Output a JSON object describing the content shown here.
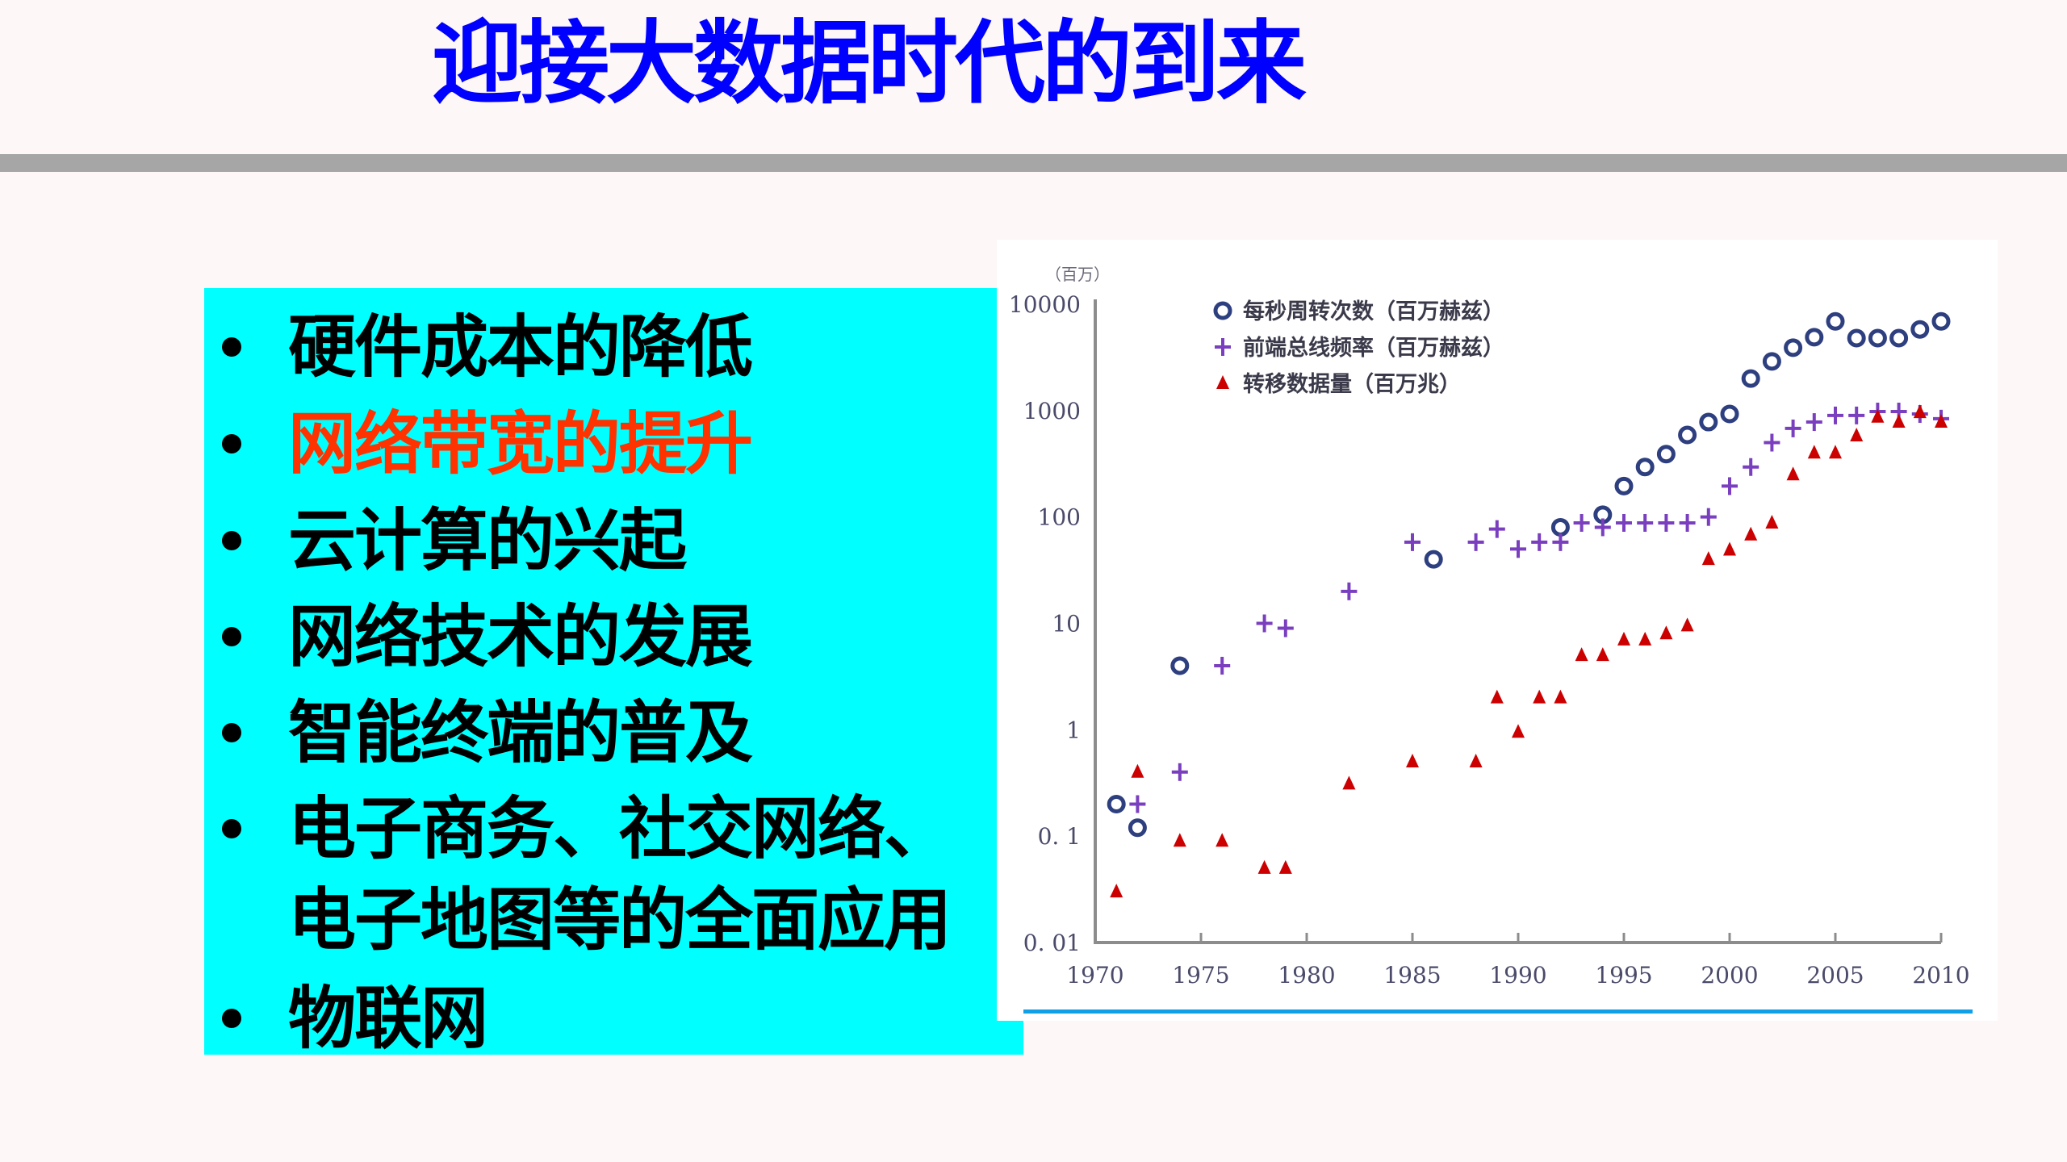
{
  "slide": {
    "title": "迎接大数据时代的到来",
    "colors": {
      "background": "#FDF7F7",
      "title": "#0000FF",
      "rule": "#A6A6A6",
      "panel": "#00FFFF",
      "highlight": "#FF3300",
      "underline": "#0FA0E8"
    }
  },
  "bullets": [
    {
      "text": "硬件成本的降低",
      "bullet": true,
      "highlight": false
    },
    {
      "text": "网络带宽的提升",
      "bullet": true,
      "highlight": true
    },
    {
      "text": "云计算的兴起",
      "bullet": true,
      "highlight": false
    },
    {
      "text": "网络技术的发展",
      "bullet": true,
      "highlight": false
    },
    {
      "text": "智能终端的普及",
      "bullet": true,
      "highlight": false
    },
    {
      "text": "电子商务、社交网络、",
      "bullet": true,
      "highlight": false
    },
    {
      "text": "电子地图等的全面应用",
      "bullet": false,
      "highlight": false
    },
    {
      "text": "物联网",
      "bullet": true,
      "highlight": false
    }
  ],
  "chart_data": {
    "type": "scatter",
    "title": "",
    "ylabel": "（百万）",
    "xlabel": "",
    "yscale": "log",
    "ylim": [
      0.01,
      10000
    ],
    "xlim": [
      1970,
      2010
    ],
    "y_ticks": [
      "10000",
      "1000",
      "100",
      "10",
      "1",
      "0.1",
      "0.01"
    ],
    "x_ticks": [
      "1970",
      "1975",
      "1980",
      "1985",
      "1990",
      "1995",
      "2000",
      "2005",
      "2010"
    ],
    "grid": false,
    "legend_position": "upper-left-inside",
    "series": [
      {
        "name": "每秒周转次数（百万赫兹）",
        "marker": "circle",
        "color": "#2E3F7F",
        "points": [
          [
            1971,
            0.2
          ],
          [
            1972,
            0.12
          ],
          [
            1974,
            4
          ],
          [
            1986,
            40
          ],
          [
            1992,
            80
          ],
          [
            1994,
            105
          ],
          [
            1995,
            195
          ],
          [
            1996,
            295
          ],
          [
            1997,
            390
          ],
          [
            1998,
            590
          ],
          [
            1999,
            780
          ],
          [
            2000,
            930
          ],
          [
            2001,
            2000
          ],
          [
            2002,
            2900
          ],
          [
            2003,
            3900
          ],
          [
            2004,
            4900
          ],
          [
            2005,
            6900
          ],
          [
            2006,
            4800
          ],
          [
            2007,
            4800
          ],
          [
            2008,
            4800
          ],
          [
            2009,
            5800
          ],
          [
            2010,
            6900
          ]
        ]
      },
      {
        "name": "前端总线频率（百万赫兹）",
        "marker": "plus",
        "color": "#7A3FBF",
        "points": [
          [
            1972,
            0.2
          ],
          [
            1974,
            0.4
          ],
          [
            1976,
            4
          ],
          [
            1978,
            10
          ],
          [
            1979,
            9
          ],
          [
            1982,
            20
          ],
          [
            1985,
            58
          ],
          [
            1988,
            58
          ],
          [
            1989,
            77
          ],
          [
            1990,
            50
          ],
          [
            1991,
            58
          ],
          [
            1992,
            58
          ],
          [
            1993,
            88
          ],
          [
            1994,
            80
          ],
          [
            1995,
            88
          ],
          [
            1996,
            88
          ],
          [
            1997,
            88
          ],
          [
            1998,
            88
          ],
          [
            1999,
            100
          ],
          [
            2000,
            195
          ],
          [
            2001,
            295
          ],
          [
            2002,
            500
          ],
          [
            2003,
            680
          ],
          [
            2004,
            780
          ],
          [
            2005,
            900
          ],
          [
            2006,
            900
          ],
          [
            2007,
            980
          ],
          [
            2008,
            980
          ],
          [
            2009,
            930
          ],
          [
            2010,
            840
          ]
        ]
      },
      {
        "name": "转移数据量（百万兆）",
        "marker": "triangle",
        "color": "#CC0000",
        "points": [
          [
            1971,
            0.03
          ],
          [
            1972,
            0.4
          ],
          [
            1974,
            0.09
          ],
          [
            1976,
            0.09
          ],
          [
            1978,
            0.05
          ],
          [
            1979,
            0.05
          ],
          [
            1982,
            0.31
          ],
          [
            1985,
            0.5
          ],
          [
            1988,
            0.5
          ],
          [
            1989,
            2
          ],
          [
            1990,
            0.95
          ],
          [
            1991,
            2
          ],
          [
            1992,
            2
          ],
          [
            1993,
            5
          ],
          [
            1994,
            5
          ],
          [
            1995,
            7
          ],
          [
            1996,
            7
          ],
          [
            1997,
            8
          ],
          [
            1998,
            9.5
          ],
          [
            1999,
            40
          ],
          [
            2000,
            49
          ],
          [
            2001,
            68
          ],
          [
            2002,
            88
          ],
          [
            2003,
            250
          ],
          [
            2004,
            400
          ],
          [
            2005,
            400
          ],
          [
            2006,
            580
          ],
          [
            2007,
            870
          ],
          [
            2008,
            780
          ],
          [
            2009,
            960
          ],
          [
            2010,
            780
          ]
        ]
      }
    ]
  }
}
